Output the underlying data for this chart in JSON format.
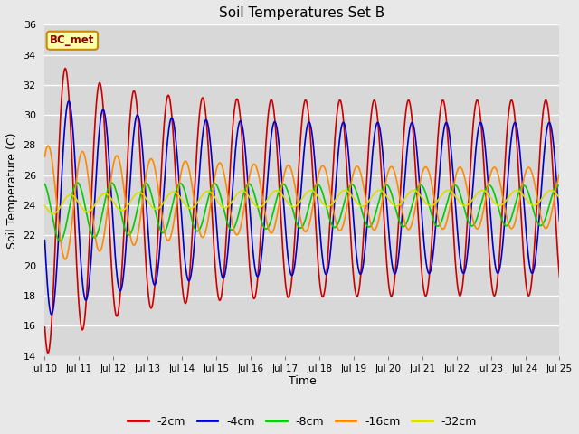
{
  "title": "Soil Temperatures Set B",
  "xlabel": "Time",
  "ylabel": "Soil Temperature (C)",
  "ylim": [
    14,
    36
  ],
  "yticks": [
    14,
    16,
    18,
    20,
    22,
    24,
    26,
    28,
    30,
    32,
    34,
    36
  ],
  "legend_label": "BC_met",
  "background_color": "#e8e8e8",
  "plot_bg_color": "#d8d8d8",
  "series": [
    {
      "label": "-2cm",
      "color": "#cc0000",
      "mean": 24.5,
      "amplitude": 10.0,
      "phase_days": 0.35,
      "period": 1.0,
      "amp_decay_rate": 0.055,
      "amp_floor": 6.5
    },
    {
      "label": "-4cm",
      "color": "#0000cc",
      "mean": 24.5,
      "amplitude": 7.5,
      "phase_days": 0.45,
      "period": 1.0,
      "amp_decay_rate": 0.045,
      "amp_floor": 5.0
    },
    {
      "label": "-8cm",
      "color": "#00cc00",
      "mean": 24.0,
      "amplitude": 2.0,
      "phase_days": 0.7,
      "period": 1.0,
      "amp_decay_rate": 0.02,
      "amp_floor": 1.3
    },
    {
      "label": "-16cm",
      "color": "#ff8800",
      "mean": 24.5,
      "amplitude": 4.0,
      "phase_days": 0.85,
      "period": 1.0,
      "amp_decay_rate": 0.03,
      "amp_floor": 2.0
    },
    {
      "label": "-32cm",
      "color": "#dddd00",
      "mean": 24.5,
      "amplitude": 0.6,
      "phase_days": 1.5,
      "period": 1.0,
      "amp_decay_rate": 0.005,
      "amp_floor": 0.4
    }
  ],
  "xtick_positions": [
    0,
    1,
    2,
    3,
    4,
    5,
    6,
    7,
    8,
    9,
    10,
    11,
    12,
    13,
    14,
    15
  ],
  "xtick_labels": [
    "Jul 10",
    "Jul 11",
    "Jul 12",
    "Jul 13",
    "Jul 14",
    "Jul 15",
    "Jul 16",
    "Jul 17",
    "Jul 18",
    "Jul 19",
    "Jul 20",
    "Jul 21",
    "Jul 22",
    "Jul 23",
    "Jul 24",
    "Jul 25"
  ],
  "xlim": [
    0,
    15
  ],
  "figsize": [
    6.4,
    4.8
  ],
  "dpi": 100
}
